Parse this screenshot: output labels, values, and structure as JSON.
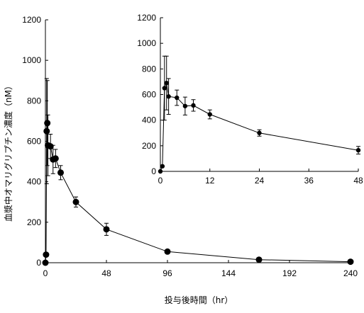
{
  "chart_data": [
    {
      "type": "line",
      "panel": "main",
      "xlabel": "投与後時間（hr）",
      "ylabel": "血漿中オマリグリプチン濃度（nM）",
      "xlim": [
        0,
        240
      ],
      "ylim": [
        0,
        1200
      ],
      "xticks": [
        0,
        48,
        96,
        144,
        192,
        240
      ],
      "yticks": [
        0,
        200,
        400,
        600,
        800,
        1000,
        1200
      ],
      "grid": false,
      "series": [
        {
          "color": "#000000",
          "x": [
            0,
            0.5,
            1,
            1.5,
            2,
            4,
            6,
            8,
            12,
            24,
            48,
            96,
            168,
            240
          ],
          "y": [
            0,
            40,
            650,
            690,
            580,
            575,
            510,
            515,
            445,
            300,
            165,
            55,
            15,
            5
          ],
          "err": [
            0,
            0,
            260,
            210,
            150,
            60,
            70,
            45,
            35,
            25,
            30,
            5,
            3,
            2
          ]
        }
      ]
    },
    {
      "type": "line",
      "panel": "inset",
      "xlabel": "",
      "ylabel": "",
      "xlim": [
        0,
        48
      ],
      "ylim": [
        0,
        1200
      ],
      "xticks": [
        0,
        12,
        24,
        36,
        48
      ],
      "yticks": [
        0,
        200,
        400,
        600,
        800,
        1000,
        1200
      ],
      "grid": false,
      "series": [
        {
          "color": "#000000",
          "x": [
            0,
            0.5,
            1,
            1.5,
            2,
            4,
            6,
            8,
            12,
            24,
            48
          ],
          "y": [
            0,
            40,
            650,
            690,
            585,
            575,
            510,
            515,
            445,
            300,
            165
          ],
          "err": [
            0,
            0,
            250,
            210,
            140,
            60,
            70,
            45,
            35,
            25,
            30
          ]
        }
      ]
    }
  ]
}
